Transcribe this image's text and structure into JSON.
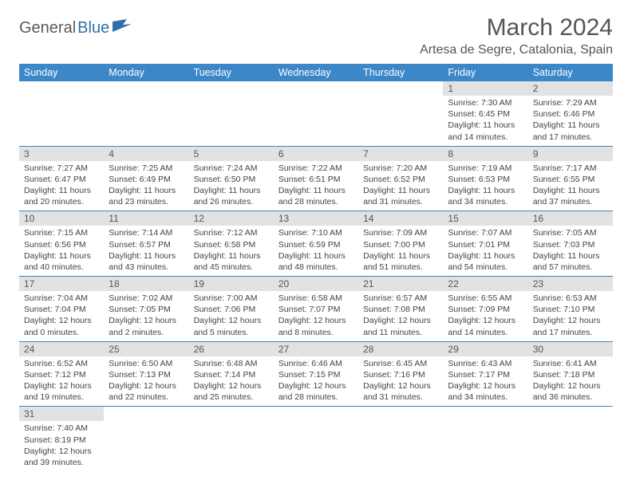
{
  "logo": {
    "general": "General",
    "blue": "Blue"
  },
  "title": "March 2024",
  "location": "Artesa de Segre, Catalonia, Spain",
  "colors": {
    "header_bg": "#3b87c8",
    "daynum_bg": "#e2e2e2",
    "border": "#3b87c8"
  },
  "weekdays": [
    "Sunday",
    "Monday",
    "Tuesday",
    "Wednesday",
    "Thursday",
    "Friday",
    "Saturday"
  ],
  "weeks": [
    [
      null,
      null,
      null,
      null,
      null,
      {
        "n": "1",
        "sr": "Sunrise: 7:30 AM",
        "ss": "Sunset: 6:45 PM",
        "dl": "Daylight: 11 hours and 14 minutes."
      },
      {
        "n": "2",
        "sr": "Sunrise: 7:29 AM",
        "ss": "Sunset: 6:46 PM",
        "dl": "Daylight: 11 hours and 17 minutes."
      }
    ],
    [
      {
        "n": "3",
        "sr": "Sunrise: 7:27 AM",
        "ss": "Sunset: 6:47 PM",
        "dl": "Daylight: 11 hours and 20 minutes."
      },
      {
        "n": "4",
        "sr": "Sunrise: 7:25 AM",
        "ss": "Sunset: 6:49 PM",
        "dl": "Daylight: 11 hours and 23 minutes."
      },
      {
        "n": "5",
        "sr": "Sunrise: 7:24 AM",
        "ss": "Sunset: 6:50 PM",
        "dl": "Daylight: 11 hours and 26 minutes."
      },
      {
        "n": "6",
        "sr": "Sunrise: 7:22 AM",
        "ss": "Sunset: 6:51 PM",
        "dl": "Daylight: 11 hours and 28 minutes."
      },
      {
        "n": "7",
        "sr": "Sunrise: 7:20 AM",
        "ss": "Sunset: 6:52 PM",
        "dl": "Daylight: 11 hours and 31 minutes."
      },
      {
        "n": "8",
        "sr": "Sunrise: 7:19 AM",
        "ss": "Sunset: 6:53 PM",
        "dl": "Daylight: 11 hours and 34 minutes."
      },
      {
        "n": "9",
        "sr": "Sunrise: 7:17 AM",
        "ss": "Sunset: 6:55 PM",
        "dl": "Daylight: 11 hours and 37 minutes."
      }
    ],
    [
      {
        "n": "10",
        "sr": "Sunrise: 7:15 AM",
        "ss": "Sunset: 6:56 PM",
        "dl": "Daylight: 11 hours and 40 minutes."
      },
      {
        "n": "11",
        "sr": "Sunrise: 7:14 AM",
        "ss": "Sunset: 6:57 PM",
        "dl": "Daylight: 11 hours and 43 minutes."
      },
      {
        "n": "12",
        "sr": "Sunrise: 7:12 AM",
        "ss": "Sunset: 6:58 PM",
        "dl": "Daylight: 11 hours and 45 minutes."
      },
      {
        "n": "13",
        "sr": "Sunrise: 7:10 AM",
        "ss": "Sunset: 6:59 PM",
        "dl": "Daylight: 11 hours and 48 minutes."
      },
      {
        "n": "14",
        "sr": "Sunrise: 7:09 AM",
        "ss": "Sunset: 7:00 PM",
        "dl": "Daylight: 11 hours and 51 minutes."
      },
      {
        "n": "15",
        "sr": "Sunrise: 7:07 AM",
        "ss": "Sunset: 7:01 PM",
        "dl": "Daylight: 11 hours and 54 minutes."
      },
      {
        "n": "16",
        "sr": "Sunrise: 7:05 AM",
        "ss": "Sunset: 7:03 PM",
        "dl": "Daylight: 11 hours and 57 minutes."
      }
    ],
    [
      {
        "n": "17",
        "sr": "Sunrise: 7:04 AM",
        "ss": "Sunset: 7:04 PM",
        "dl": "Daylight: 12 hours and 0 minutes."
      },
      {
        "n": "18",
        "sr": "Sunrise: 7:02 AM",
        "ss": "Sunset: 7:05 PM",
        "dl": "Daylight: 12 hours and 2 minutes."
      },
      {
        "n": "19",
        "sr": "Sunrise: 7:00 AM",
        "ss": "Sunset: 7:06 PM",
        "dl": "Daylight: 12 hours and 5 minutes."
      },
      {
        "n": "20",
        "sr": "Sunrise: 6:58 AM",
        "ss": "Sunset: 7:07 PM",
        "dl": "Daylight: 12 hours and 8 minutes."
      },
      {
        "n": "21",
        "sr": "Sunrise: 6:57 AM",
        "ss": "Sunset: 7:08 PM",
        "dl": "Daylight: 12 hours and 11 minutes."
      },
      {
        "n": "22",
        "sr": "Sunrise: 6:55 AM",
        "ss": "Sunset: 7:09 PM",
        "dl": "Daylight: 12 hours and 14 minutes."
      },
      {
        "n": "23",
        "sr": "Sunrise: 6:53 AM",
        "ss": "Sunset: 7:10 PM",
        "dl": "Daylight: 12 hours and 17 minutes."
      }
    ],
    [
      {
        "n": "24",
        "sr": "Sunrise: 6:52 AM",
        "ss": "Sunset: 7:12 PM",
        "dl": "Daylight: 12 hours and 19 minutes."
      },
      {
        "n": "25",
        "sr": "Sunrise: 6:50 AM",
        "ss": "Sunset: 7:13 PM",
        "dl": "Daylight: 12 hours and 22 minutes."
      },
      {
        "n": "26",
        "sr": "Sunrise: 6:48 AM",
        "ss": "Sunset: 7:14 PM",
        "dl": "Daylight: 12 hours and 25 minutes."
      },
      {
        "n": "27",
        "sr": "Sunrise: 6:46 AM",
        "ss": "Sunset: 7:15 PM",
        "dl": "Daylight: 12 hours and 28 minutes."
      },
      {
        "n": "28",
        "sr": "Sunrise: 6:45 AM",
        "ss": "Sunset: 7:16 PM",
        "dl": "Daylight: 12 hours and 31 minutes."
      },
      {
        "n": "29",
        "sr": "Sunrise: 6:43 AM",
        "ss": "Sunset: 7:17 PM",
        "dl": "Daylight: 12 hours and 34 minutes."
      },
      {
        "n": "30",
        "sr": "Sunrise: 6:41 AM",
        "ss": "Sunset: 7:18 PM",
        "dl": "Daylight: 12 hours and 36 minutes."
      }
    ],
    [
      {
        "n": "31",
        "sr": "Sunrise: 7:40 AM",
        "ss": "Sunset: 8:19 PM",
        "dl": "Daylight: 12 hours and 39 minutes."
      },
      null,
      null,
      null,
      null,
      null,
      null
    ]
  ]
}
